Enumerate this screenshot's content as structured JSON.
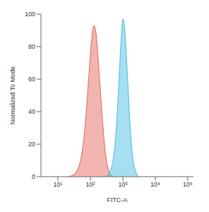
{
  "chart_data": {
    "type": "area",
    "x_label": "FITC-A",
    "y_label": "Normalized To Mode",
    "log": "x",
    "x": [
      20,
      30,
      40,
      50,
      60,
      70,
      80,
      90,
      100,
      110,
      120,
      130,
      150,
      170,
      200,
      250,
      300,
      350,
      400,
      500,
      600,
      700,
      800,
      900,
      1000,
      1100,
      1200,
      1400,
      1600,
      1800,
      2000,
      2500,
      3000
    ],
    "series": [
      {
        "color": "#e8766e",
        "values": [
          0,
          1,
          4,
          10,
          20,
          33,
          48,
          62,
          75,
          85,
          91,
          93,
          88,
          75,
          55,
          28,
          12,
          5,
          2,
          0,
          null,
          null,
          null,
          null,
          null,
          null,
          null,
          null,
          null,
          null,
          null,
          null,
          null
        ]
      },
      {
        "color": "#5bc4e6",
        "values": [
          null,
          null,
          null,
          null,
          null,
          null,
          null,
          null,
          null,
          null,
          null,
          null,
          null,
          null,
          null,
          null,
          0,
          1,
          3,
          10,
          24,
          45,
          68,
          86,
          97,
          94,
          85,
          60,
          38,
          22,
          12,
          3,
          0
        ]
      }
    ],
    "xlim": [
      3,
      150000
    ],
    "xticks": [
      {
        "value": 10,
        "label": "10¹"
      },
      {
        "value": 100,
        "label": "10²"
      },
      {
        "value": 1000,
        "label": "10³"
      },
      {
        "value": 10000,
        "label": "10⁴"
      },
      {
        "value": 100000,
        "label": "10⁵"
      }
    ],
    "ylim": [
      0,
      100
    ],
    "yticks": [
      0,
      20,
      40,
      60,
      80,
      100
    ]
  }
}
